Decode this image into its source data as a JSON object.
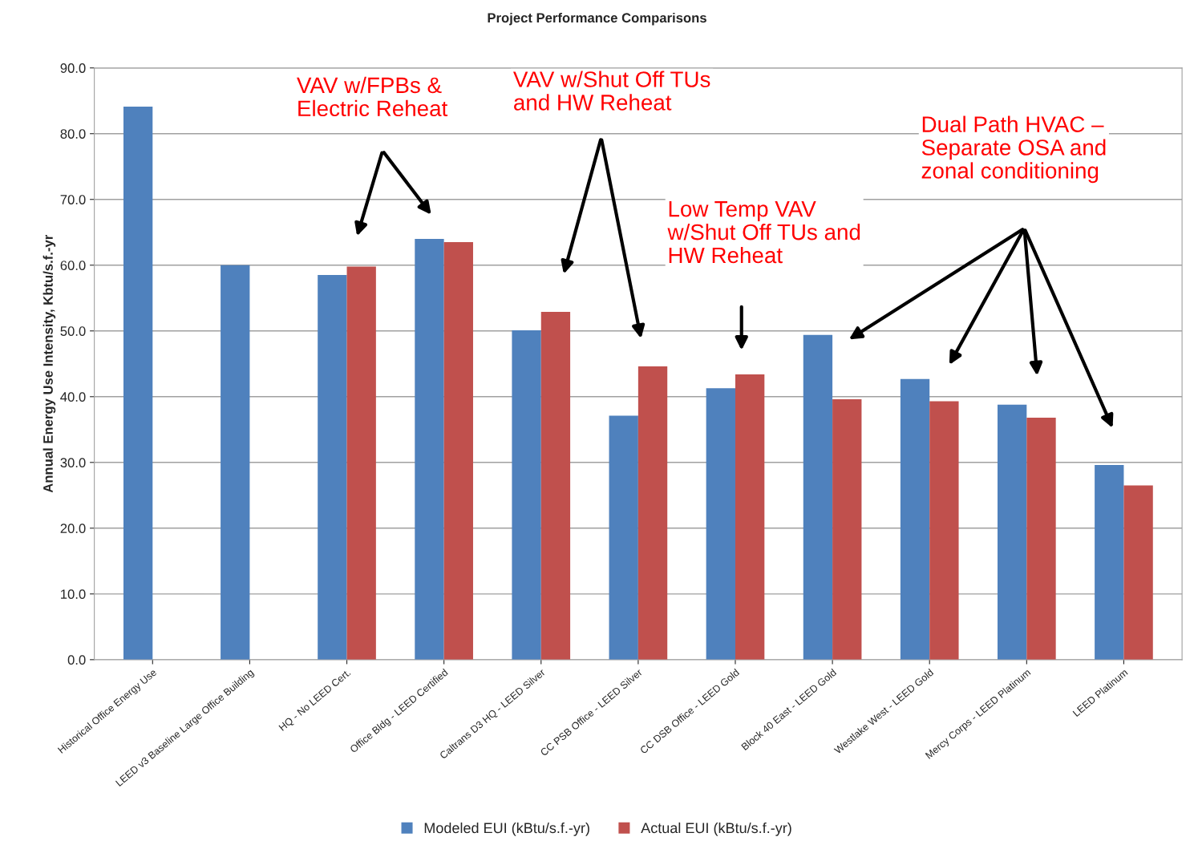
{
  "chart_data": {
    "type": "bar",
    "title": "Project Performance Comparisons",
    "ylabel": "Annual Energy Use Intensity, Kbtu/s.f.-yr",
    "categories": [
      "Historical Office Energy Use",
      "LEED v3 Baseline Large Office Building",
      "HQ - No LEED Cert.",
      "Office Bldg - LEED Certified",
      "Caltrans D3 HQ - LEED Silver",
      "CC PSB Office - LEED Silver",
      "CC DSB Office - LEED Gold",
      "Block 40 East - LEED Gold",
      "Westlake West - LEED Gold",
      "Mercy Corps - LEED Platinum",
      "LEED Platinum"
    ],
    "series": [
      {
        "name": "Modeled EUI (kBtu/s.f.-yr)",
        "color": "#4f81bd",
        "values": [
          84.1,
          60.0,
          58.5,
          64.0,
          50.1,
          37.1,
          41.3,
          49.4,
          42.7,
          38.8,
          29.6
        ]
      },
      {
        "name": "Actual EUI (kBtu/s.f.-yr)",
        "color": "#c0504d",
        "values": [
          null,
          null,
          59.8,
          63.5,
          52.9,
          44.6,
          43.4,
          39.6,
          39.3,
          36.8,
          26.5
        ]
      }
    ],
    "ylim": [
      0,
      90
    ],
    "yticks": [
      {
        "value": 0,
        "label": "0.0"
      },
      {
        "value": 10,
        "label": "10.0"
      },
      {
        "value": 20,
        "label": "20.0"
      },
      {
        "value": 30,
        "label": "30.0"
      },
      {
        "value": 40,
        "label": "40.0"
      },
      {
        "value": 50,
        "label": "50.0"
      },
      {
        "value": 60,
        "label": "60.0"
      },
      {
        "value": 70,
        "label": "70.0"
      },
      {
        "value": 80,
        "label": "80.0"
      },
      {
        "value": 90,
        "label": "90.0"
      }
    ],
    "grid": "y",
    "legend": "bottom",
    "annotations": [
      "VAV w/FPBs &\nElectric Reheat",
      "VAV w/Shut Off TUs\nand HW Reheat",
      "Low Temp VAV\nw/Shut Off TUs and\nHW Reheat",
      "Dual Path HVAC –\nSeparate OSA and\nzonal conditioning"
    ]
  }
}
